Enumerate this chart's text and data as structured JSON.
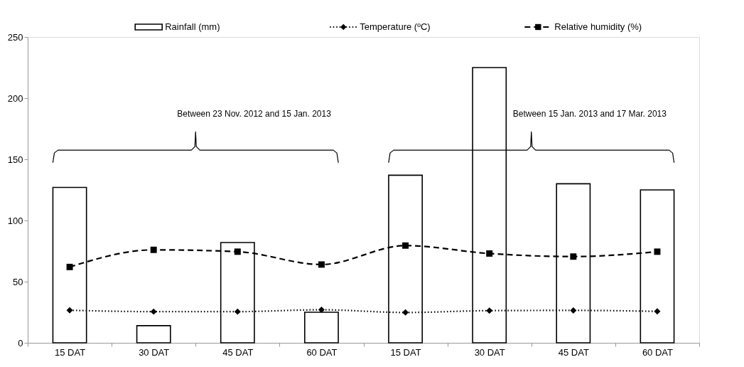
{
  "chart_data": {
    "type": "bar",
    "categories": [
      "15 DAT",
      "30 DAT",
      "45 DAT",
      "60 DAT",
      "15 DAT",
      "30 DAT",
      "45 DAT",
      "60 DAT"
    ],
    "series": [
      {
        "name": "Rainfall (mm)",
        "color": "#000000",
        "values": [
          127,
          14,
          82,
          25,
          137,
          225,
          130,
          125
        ]
      },
      {
        "name": "Temperature (ºC)",
        "type": "line",
        "color": "#000000",
        "marker": "diamond",
        "line_style": "dotted",
        "values": [
          26.6,
          25.5,
          25.5,
          27,
          24.8,
          26.3,
          26.5,
          25.7
        ]
      },
      {
        "name": "Relative humidity (%)",
        "type": "line",
        "color": "#000000",
        "marker": "square",
        "line_style": "dashed",
        "values": [
          62,
          76,
          74.5,
          64,
          79.5,
          73,
          70.5,
          74.5
        ]
      }
    ],
    "ylim": [
      0,
      250
    ],
    "yticks": [
      0,
      50,
      100,
      150,
      200,
      250
    ],
    "grid": false,
    "legend": "top",
    "annotations": [
      "Between 23 Nov. 2012 and 15 Jan. 2013",
      "Between 15 Jan. 2013 and 17 Mar. 2013"
    ]
  }
}
